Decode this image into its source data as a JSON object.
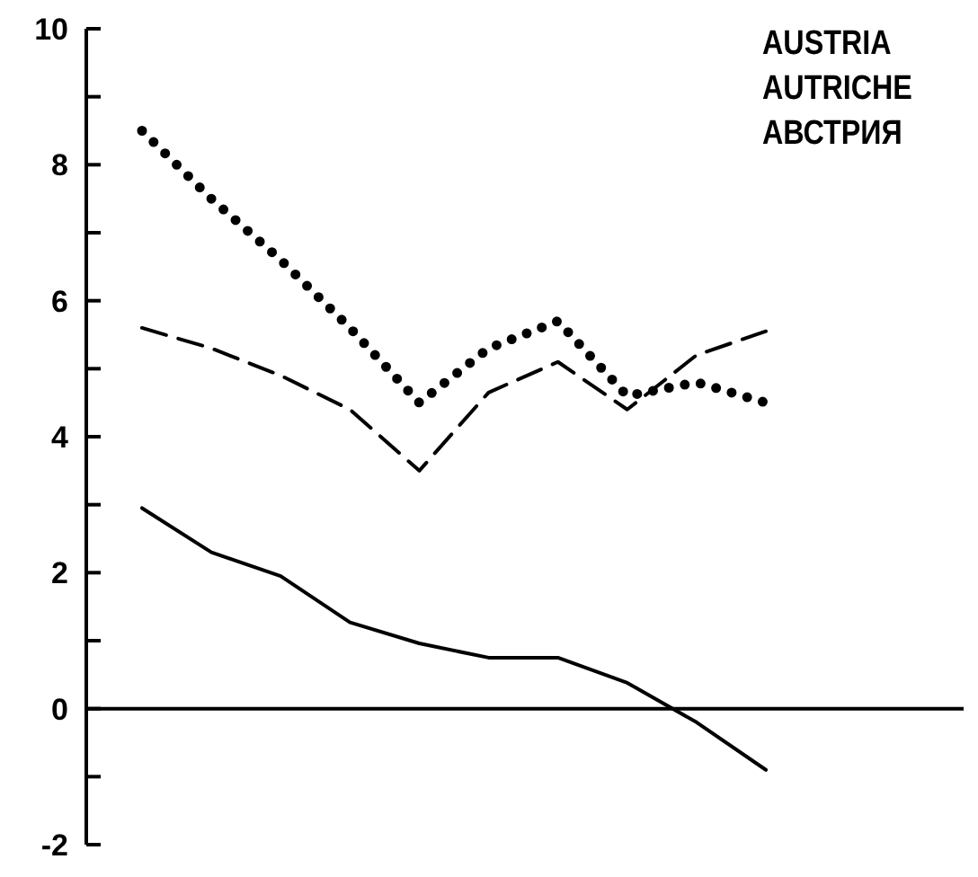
{
  "chart_data": {
    "type": "line",
    "title": "AUSTRIA\nAUTRICHE\nАВСТРИЯ",
    "categories": [
      null,
      null,
      null,
      null,
      null,
      null,
      null,
      null,
      null,
      null
    ],
    "series": [
      {
        "color": "#000000",
        "line_style": "dotted",
        "values": [
          8.5,
          7.5,
          6.6,
          5.6,
          4.5,
          5.3,
          5.7,
          4.6,
          4.8,
          4.5
        ]
      },
      {
        "color": "#000000",
        "line_style": "dashed",
        "values": [
          5.6,
          5.3,
          4.9,
          4.4,
          3.5,
          4.65,
          5.1,
          4.4,
          5.2,
          5.55
        ]
      },
      {
        "color": "#000000",
        "line_style": "solid",
        "values": [
          2.95,
          2.3,
          1.95,
          1.27,
          0.96,
          0.75,
          0.75,
          0.38,
          -0.2,
          -0.9
        ]
      }
    ],
    "ylim": [
      -2,
      10
    ],
    "yticks": [
      -2,
      {
        "value": -1,
        "label": null
      },
      0,
      {
        "value": 1,
        "label": null
      },
      2,
      {
        "value": 3,
        "label": null
      },
      4,
      {
        "value": 5,
        "label": null
      },
      6,
      {
        "value": 7,
        "label": null
      },
      8,
      {
        "value": 9,
        "label": null
      },
      10
    ],
    "ref_lines": [
      {
        "axis": "y",
        "value": 0,
        "color": "#000000"
      }
    ],
    "tick_labels": "y",
    "marker": "none"
  }
}
